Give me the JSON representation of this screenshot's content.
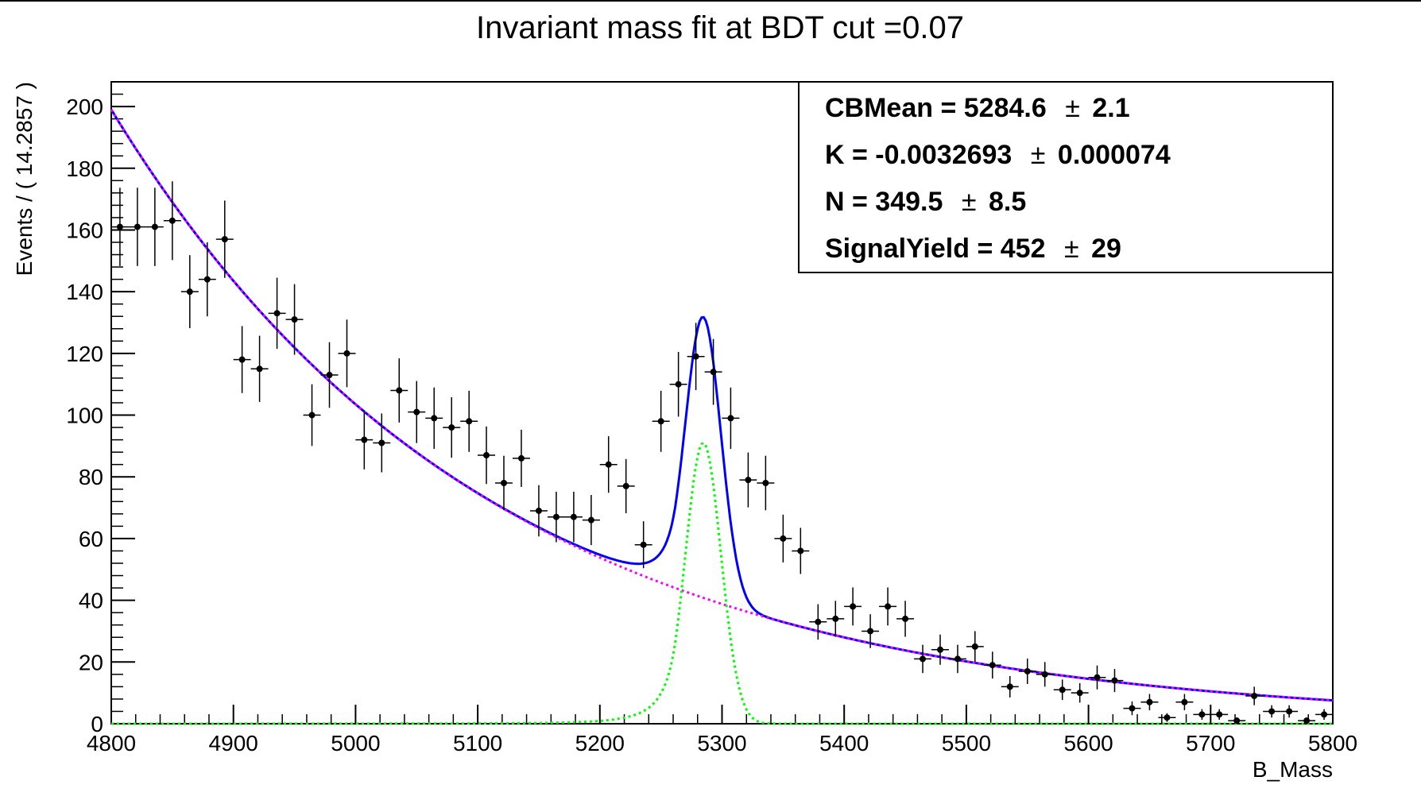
{
  "chart_data": {
    "type": "scatter",
    "title": "Invariant mass fit at BDT cut =0.07",
    "xlabel": "B_Mass",
    "ylabel": "Events / ( 14.2857 )",
    "xlim": [
      4800,
      5800
    ],
    "ylim": [
      0,
      208
    ],
    "x_ticks": [
      "4800",
      "4900",
      "5000",
      "5100",
      "5200",
      "5300",
      "5400",
      "5500",
      "5600",
      "5700",
      "5800"
    ],
    "y_ticks": [
      "0",
      "20",
      "40",
      "60",
      "80",
      "100",
      "120",
      "140",
      "160",
      "180",
      "200"
    ],
    "bin_width": 14.2857,
    "data_points": {
      "x": [
        4807.1,
        4821.4,
        4835.7,
        4850.0,
        4864.3,
        4878.6,
        4892.9,
        4907.1,
        4921.4,
        4935.7,
        4950.0,
        4964.3,
        4978.6,
        4992.9,
        5007.1,
        5021.4,
        5035.7,
        5050.0,
        5064.3,
        5078.6,
        5092.9,
        5107.1,
        5121.4,
        5135.7,
        5150.0,
        5164.3,
        5178.6,
        5192.9,
        5207.1,
        5221.4,
        5235.7,
        5250.0,
        5264.3,
        5278.6,
        5292.9,
        5307.1,
        5321.4,
        5335.7,
        5350.0,
        5364.3,
        5378.6,
        5392.9,
        5407.1,
        5421.4,
        5435.7,
        5450.0,
        5464.3,
        5478.6,
        5492.9,
        5507.1,
        5521.4,
        5535.7,
        5550.0,
        5564.3,
        5578.6,
        5592.9,
        5607.1,
        5621.4,
        5635.7,
        5650.0,
        5664.3,
        5678.6,
        5692.9,
        5707.1,
        5721.4,
        5735.7,
        5750.0,
        5764.3,
        5778.6,
        5792.9
      ],
      "y": [
        161,
        161,
        161,
        163,
        140,
        144,
        157,
        118,
        115,
        133,
        131,
        100,
        113,
        120,
        92,
        91,
        108,
        101,
        99,
        96,
        98,
        87,
        78,
        86,
        69,
        67,
        67,
        66,
        84,
        77,
        58,
        98,
        110,
        119,
        114,
        99,
        79,
        78,
        60,
        56,
        33,
        34,
        38,
        30,
        38,
        34,
        21,
        24,
        21,
        25,
        19,
        12,
        17,
        16,
        11,
        10,
        15,
        14,
        5,
        7,
        2,
        7,
        3,
        3,
        1,
        9,
        4,
        4,
        1,
        3
      ]
    },
    "series": [
      {
        "kind": "total-fit",
        "color": "#0000ff",
        "style": "solid"
      },
      {
        "kind": "background",
        "color": "#ff00ff",
        "style": "dotted"
      },
      {
        "kind": "signal",
        "color": "#00ff00",
        "style": "dotted"
      }
    ],
    "fit_model": {
      "background_amplitude": 199,
      "background_slope": -0.0032693,
      "signal_mean": 5284.6,
      "signal_sigma": 14.5,
      "signal_peak": 91
    },
    "legend_position": "top-right",
    "grid": false
  },
  "stats_box": {
    "rows": [
      {
        "label": "CBMean =  5284.6",
        "pm": "±",
        "error": "2.1"
      },
      {
        "label": "K = -0.0032693",
        "pm": "±",
        "error": "0.000074"
      },
      {
        "label": "N =  349.5",
        "pm": "±",
        "error": "8.5"
      },
      {
        "label": "SignalYield =  452",
        "pm": "±",
        "error": "29"
      }
    ]
  }
}
